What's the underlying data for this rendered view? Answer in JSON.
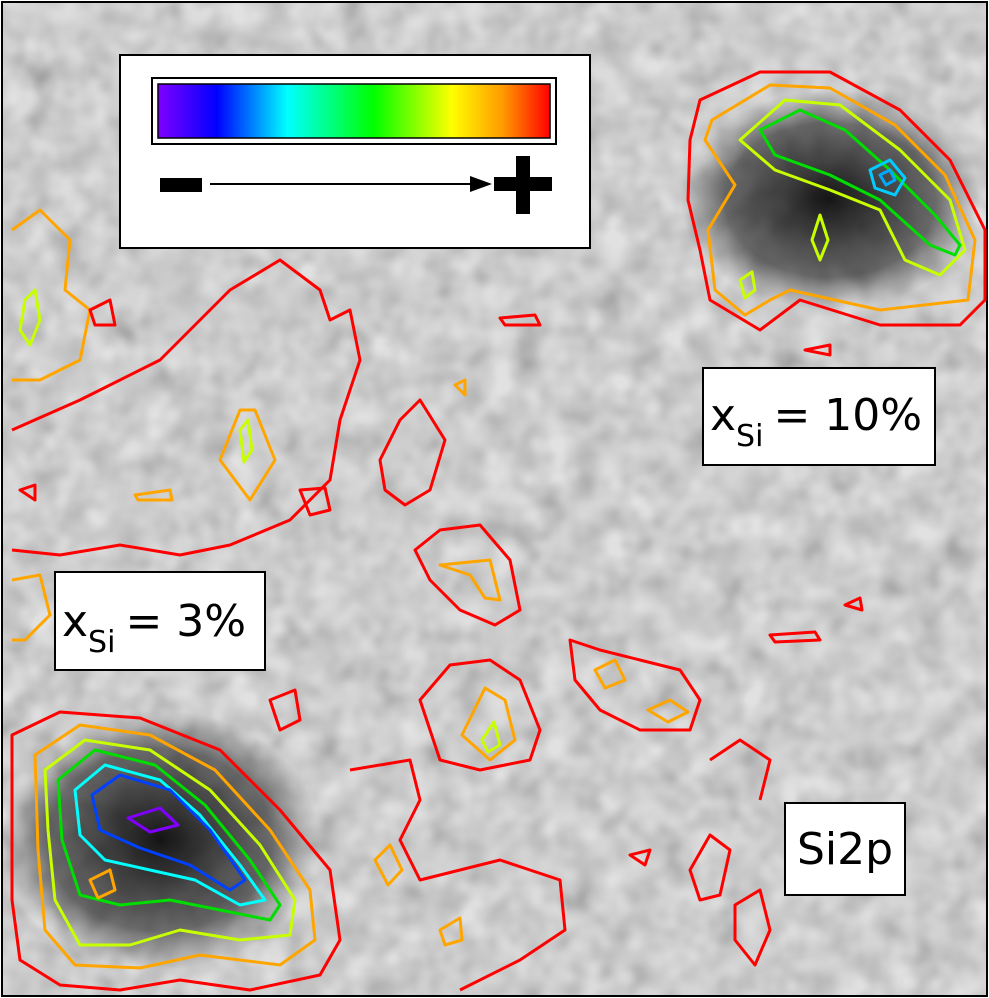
{
  "labels": [
    {
      "symbol": "x",
      "subscript": "Si",
      "text": "= 10%"
    },
    {
      "symbol": "x",
      "subscript": "Si",
      "text": "= 3%"
    },
    {
      "text": "Si2p"
    }
  ]
}
